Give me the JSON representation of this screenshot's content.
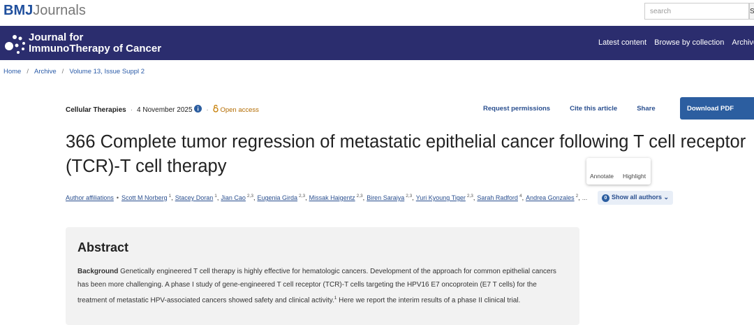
{
  "header": {
    "brand_bold": "BMJ",
    "brand": "Journals",
    "search_placeholder": "search",
    "search_button": "S"
  },
  "journal": {
    "line1": "Journal for",
    "line2": "ImmunoTherapy of Cancer",
    "nav": [
      "Latest content",
      "Browse by collection",
      "Archive"
    ]
  },
  "breadcrumbs": [
    "Home",
    "Archive",
    "Volume 13, Issue Suppl 2"
  ],
  "article": {
    "section": "Cellular Therapies",
    "date": "4 November 2025",
    "access": "Open access",
    "tools": [
      "Request permissions",
      "Cite this article",
      "Share"
    ],
    "download": "Download PDF",
    "title": "366 Complete tumor regression of metastatic epithelial cancer following T cell receptor (TCR)-T cell therapy",
    "popup": [
      "Annotate",
      "Highlight"
    ],
    "affiliations": "Author affiliations",
    "authors": [
      {
        "name": "Scott M Norberg",
        "sup": "1"
      },
      {
        "name": "Stacey Doran",
        "sup": "1"
      },
      {
        "name": "Jian Cao",
        "sup": "2,3"
      },
      {
        "name": "Eugenia Girda",
        "sup": "2,3"
      },
      {
        "name": "Missak Haigentz",
        "sup": "2,3"
      },
      {
        "name": "Biren Saraiya",
        "sup": "2,3"
      },
      {
        "name": "Yuri Kyoung Tiger",
        "sup": "2,3"
      },
      {
        "name": "Sarah Radford",
        "sup": "4"
      },
      {
        "name": "Andrea Gonzales",
        "sup": "2"
      }
    ],
    "ellipsis": "...",
    "badge": "0",
    "show_all": "Show all authors",
    "abstract": {
      "heading": "Abstract",
      "label": "Background",
      "text1": " Genetically engineered T cell therapy is highly effective for hematologic cancers. Development of the approach for common epithelial cancers has been more challenging. A phase I study of gene-engineered T cell receptor (TCR)-T cells targeting the HPV16 E7 oncoprotein (E7 T cells) for the treatment of metastatic HPV-associated cancers showed safety and clinical activity.",
      "sup": "1",
      "text2": " Here we report the interim results of a phase II clinical trial."
    }
  }
}
